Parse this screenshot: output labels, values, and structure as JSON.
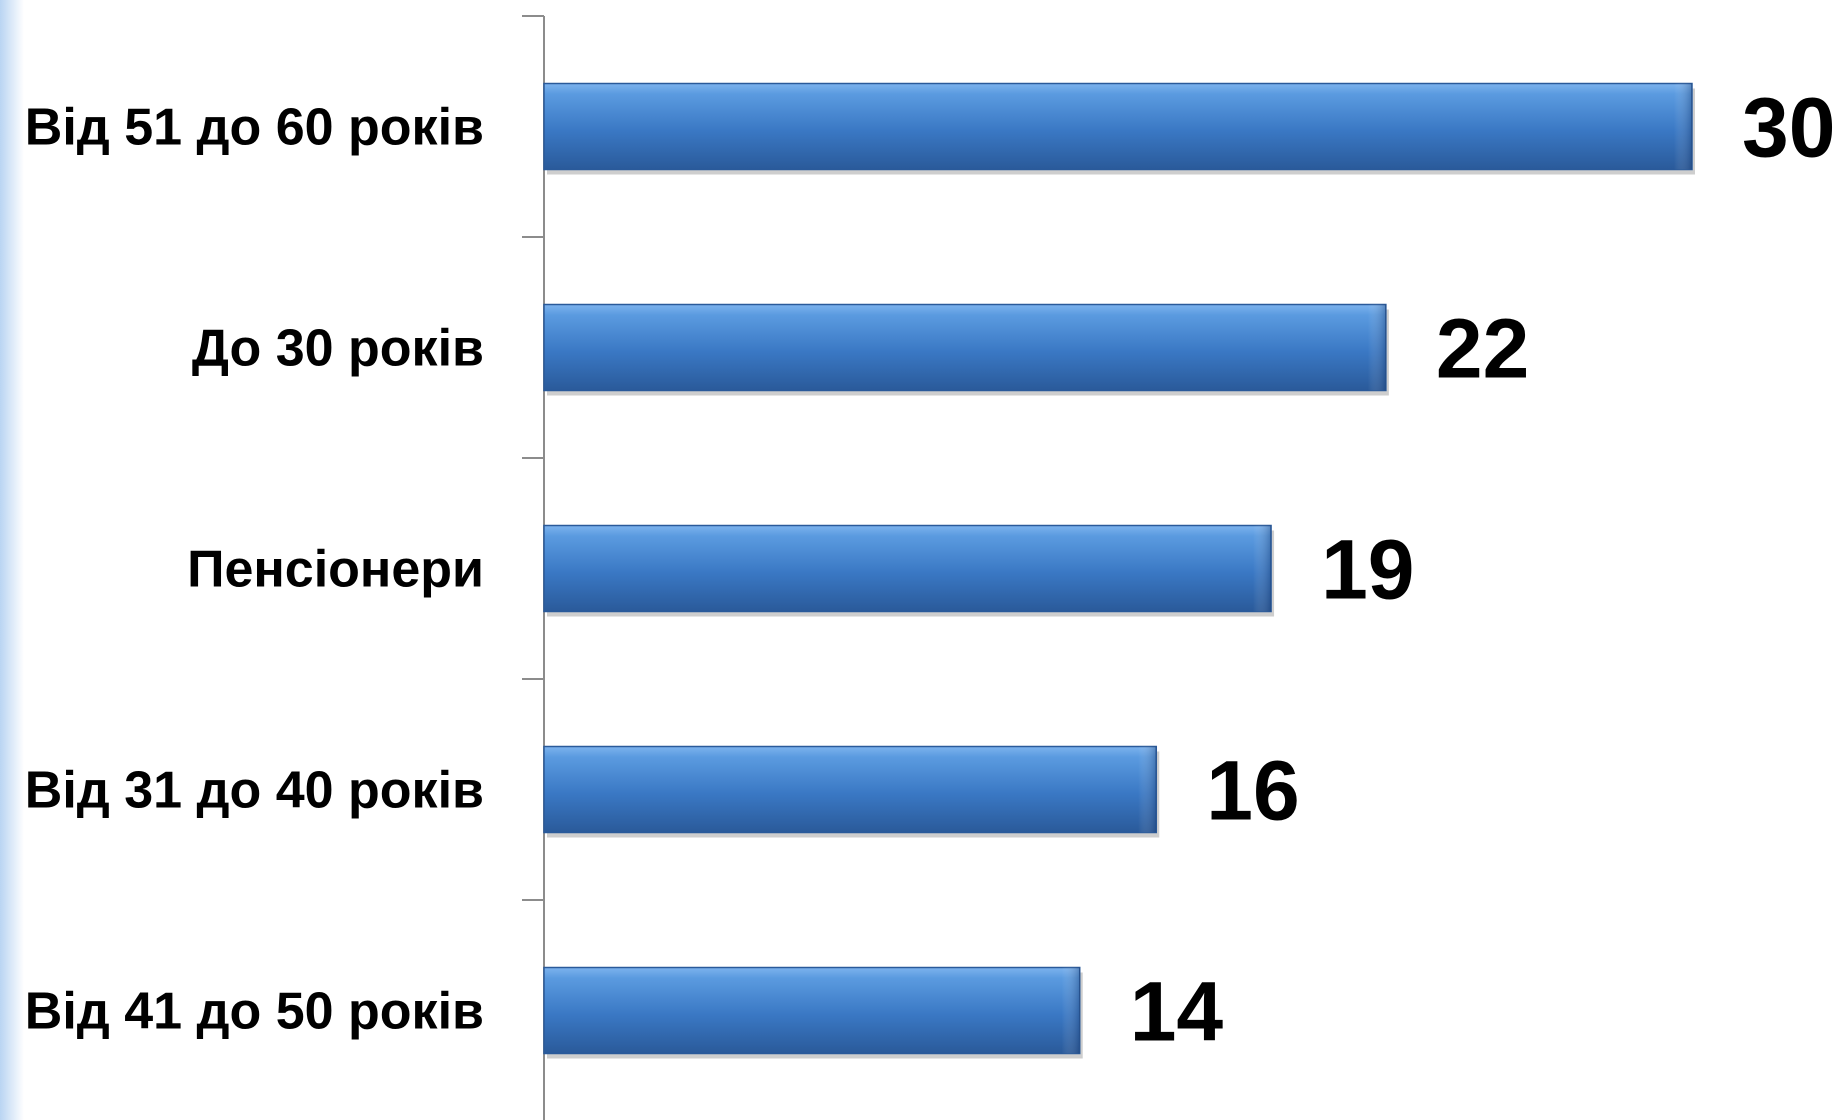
{
  "chart_data": {
    "type": "bar",
    "orientation": "horizontal",
    "categories": [
      "Від 51 до 60 років",
      "До 30 років",
      "Пенсіонери",
      "Від 31 до 40 років",
      "Від 41 до 50 років"
    ],
    "values": [
      30,
      22,
      19,
      16,
      14
    ],
    "title": "",
    "xlabel": "",
    "ylabel": "",
    "xlim": [
      0,
      30
    ],
    "grid": false,
    "legend": "none",
    "colors": {
      "bar_light": "#5b9be0",
      "bar_mid": "#3a78c4",
      "bar_dark": "#2a5a9a",
      "axis": "#8c8c8c",
      "text": "#000000"
    }
  }
}
